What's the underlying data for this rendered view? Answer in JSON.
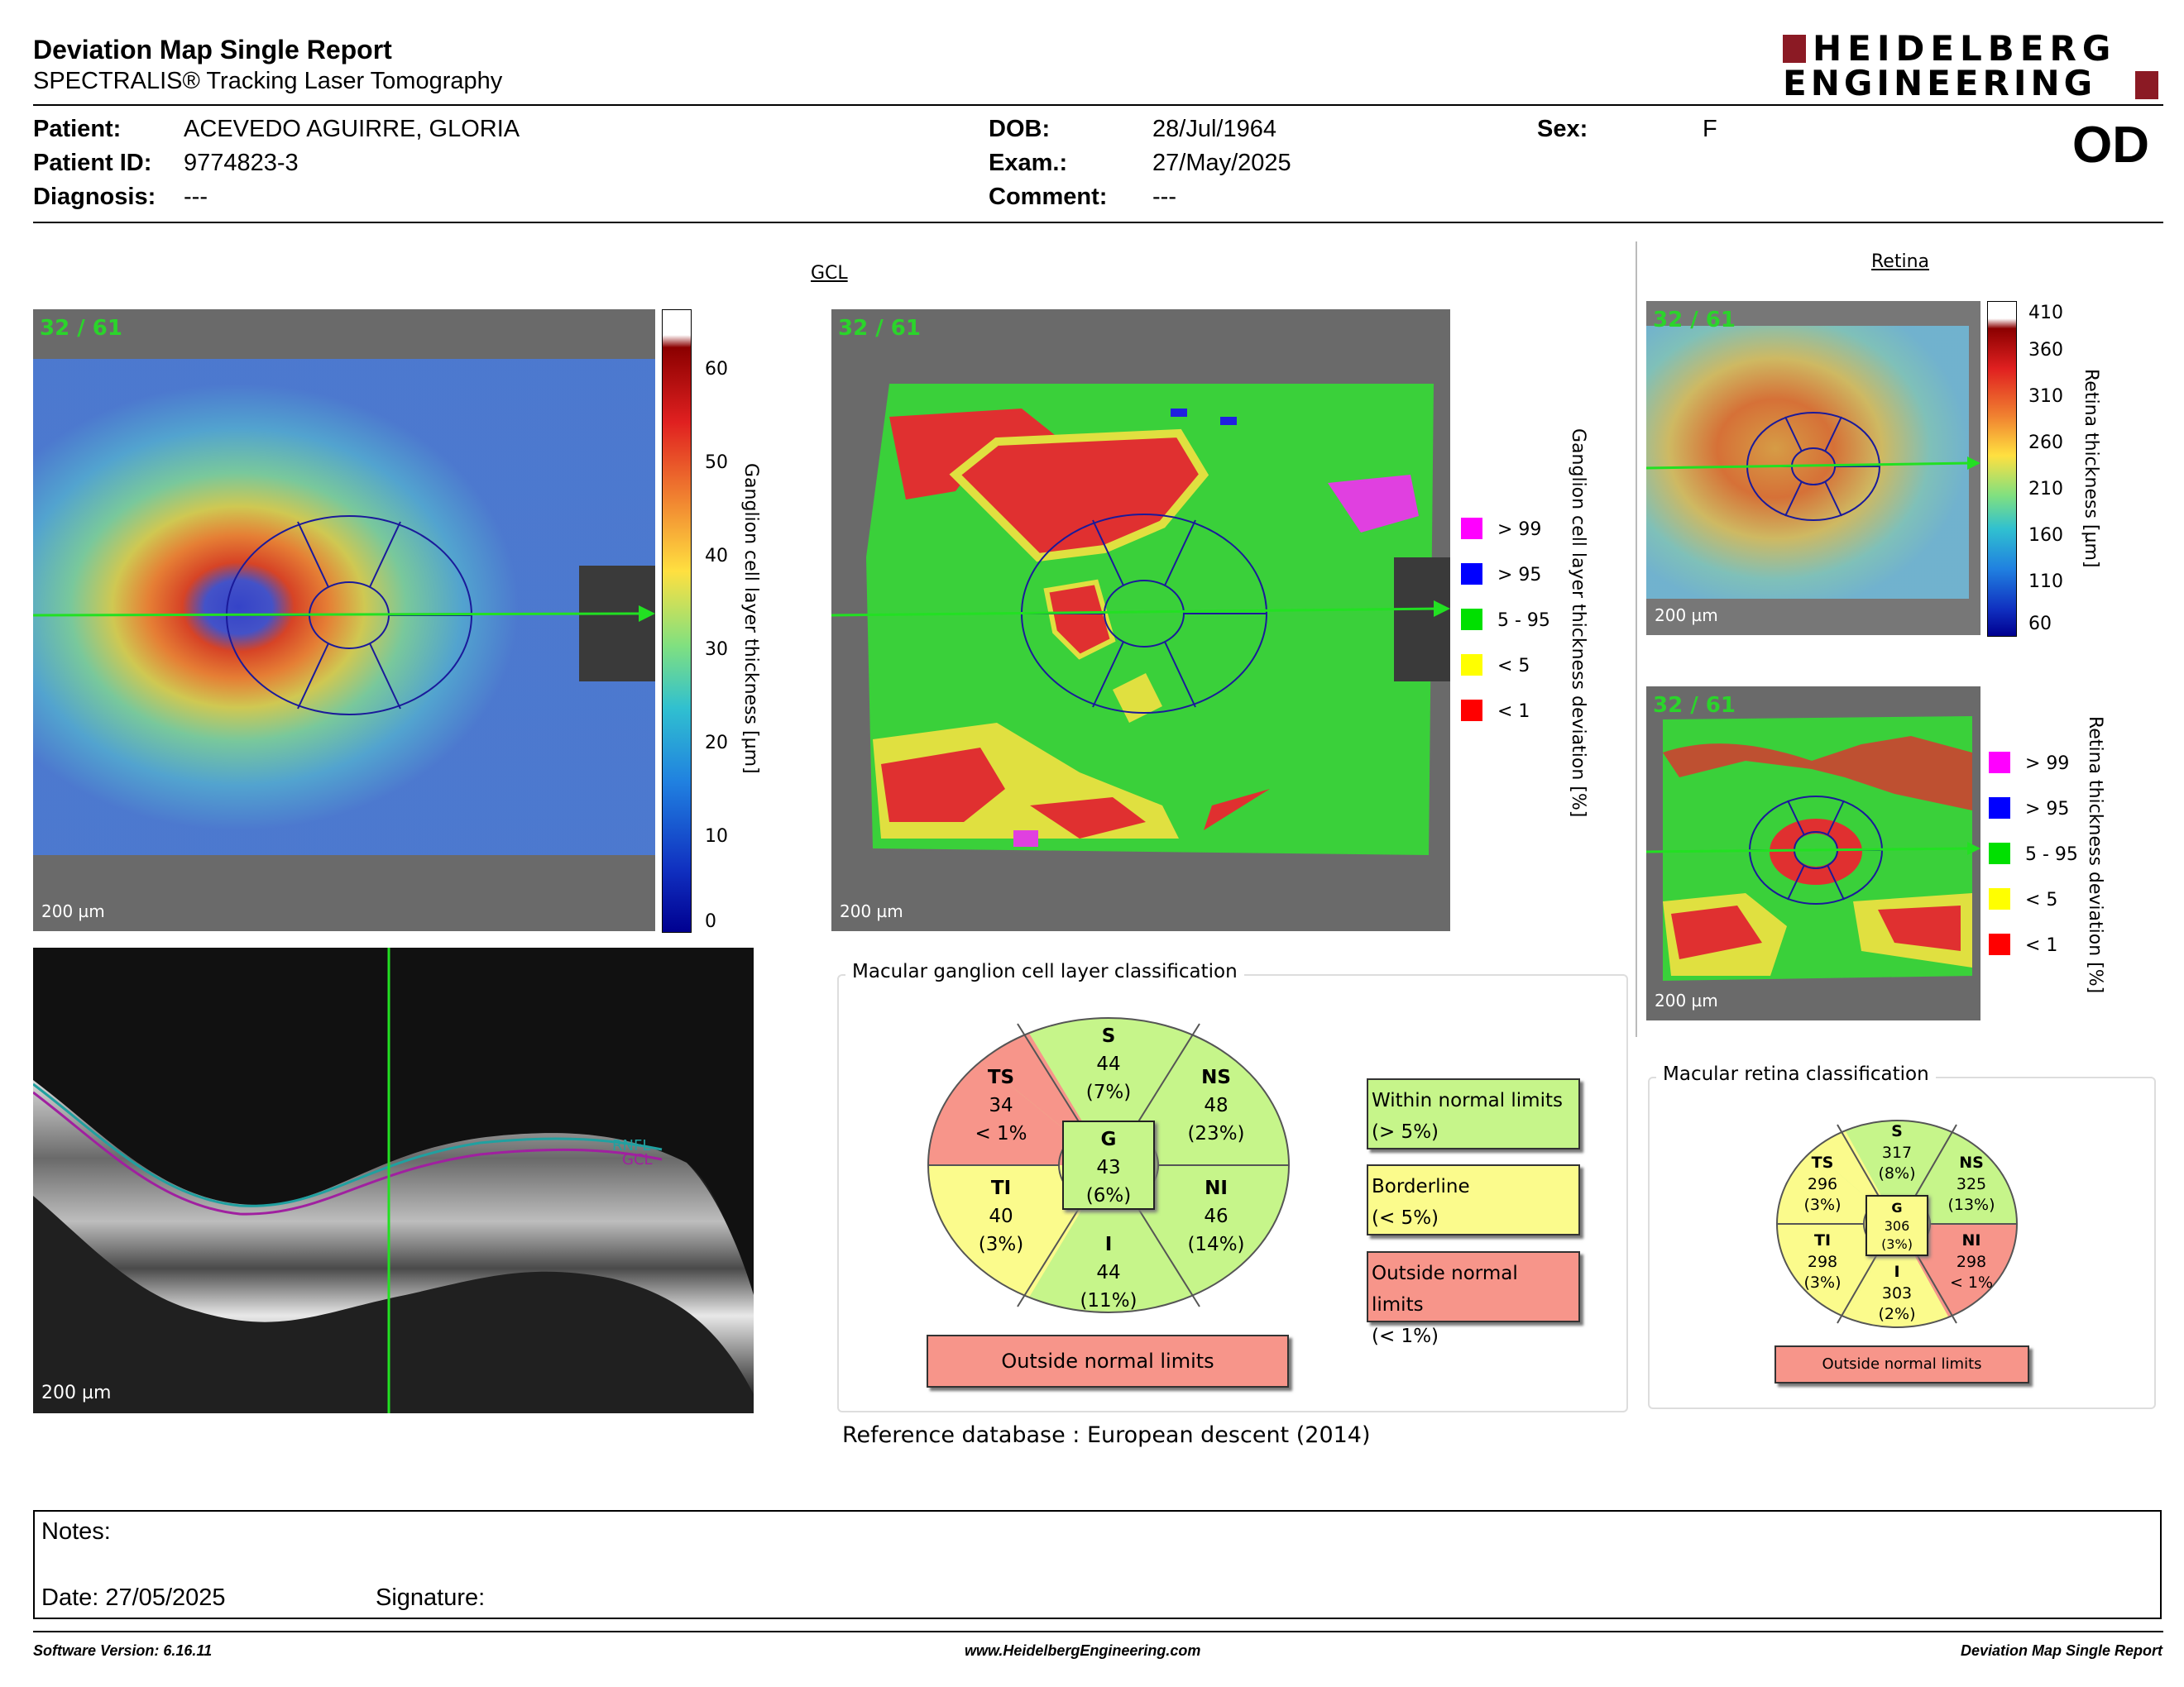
{
  "header": {
    "title": "Deviation Map Single Report",
    "subtitle": "SPECTRALIS® Tracking Laser Tomography",
    "logo_line1": "HEIDELBERG",
    "logo_line2": "ENGINEERING",
    "eye": "OD"
  },
  "patient": {
    "patient_label": "Patient:",
    "patient_value": "ACEVEDO AGUIRRE, GLORIA",
    "id_label": "Patient ID:",
    "id_value": "9774823-3",
    "diagnosis_label": "Diagnosis:",
    "diagnosis_value": "---",
    "dob_label": "DOB:",
    "dob_value": "28/Jul/1964",
    "exam_label": "Exam.:",
    "exam_value": "27/May/2025",
    "comment_label": "Comment:",
    "comment_value": "---",
    "sex_label": "Sex:",
    "sex_value": "F"
  },
  "gcl": {
    "section_label": "GCL",
    "counter": "32 / 61",
    "scale": "200 µm",
    "thickness_ticks": [
      "60",
      "50",
      "40",
      "30",
      "20",
      "10",
      "0"
    ],
    "thickness_axis": "Ganglion cell layer thickness [µm]",
    "deviation_axis": "Ganglion cell layer thickness deviation [%]",
    "legend": [
      {
        "label": "> 99",
        "color": "#ff00ff"
      },
      {
        "label": "> 95",
        "color": "#0000ff"
      },
      {
        "label": "5 - 95",
        "color": "#00e000"
      },
      {
        "label": "< 5",
        "color": "#ffff00"
      },
      {
        "label": "< 1",
        "color": "#ff0000"
      }
    ]
  },
  "oct": {
    "scale": "200 µm",
    "rnfl": "RNFL",
    "gcl": "GCL"
  },
  "retina": {
    "section_label": "Retina",
    "counter": "32 / 61",
    "scale": "200 µm",
    "thickness_ticks": [
      "410",
      "360",
      "310",
      "260",
      "210",
      "160",
      "110",
      "60"
    ],
    "thickness_axis": "Retina thickness [µm]",
    "deviation_axis": "Retina thickness deviation [%]",
    "legend": [
      "> 99",
      "> 95",
      "5 - 95",
      "< 5",
      "< 1"
    ]
  },
  "gcl_class": {
    "title": "Macular ganglion cell layer classification",
    "sectors": {
      "S": [
        "S",
        "44",
        "(7%)"
      ],
      "TS": [
        "TS",
        "34",
        "< 1%"
      ],
      "NS": [
        "NS",
        "48",
        "(23%)"
      ],
      "TI": [
        "TI",
        "40",
        "(3%)"
      ],
      "NI": [
        "NI",
        "46",
        "(14%)"
      ],
      "I": [
        "I",
        "44",
        "(11%)"
      ],
      "G": [
        "G",
        "43",
        "(6%)"
      ]
    },
    "result": "Outside normal limits",
    "key_within_1": "Within normal limits",
    "key_within_2": "(> 5%)",
    "key_border_1": "Borderline",
    "key_border_2": "(< 5%)",
    "key_outside_1": "Outside normal limits",
    "key_outside_2": "(< 1%)"
  },
  "retina_class": {
    "title": "Macular retina classification",
    "sectors": {
      "S": [
        "S",
        "317",
        "(8%)"
      ],
      "TS": [
        "TS",
        "296",
        "(3%)"
      ],
      "NS": [
        "NS",
        "325",
        "(13%)"
      ],
      "TI": [
        "TI",
        "298",
        "(3%)"
      ],
      "NI": [
        "NI",
        "298",
        "< 1%"
      ],
      "I": [
        "I",
        "303",
        "(2%)"
      ],
      "G": [
        "G",
        "306",
        "(3%)"
      ]
    },
    "result": "Outside normal limits"
  },
  "reference": "Reference database :  European descent (2014)",
  "notes": {
    "label": "Notes:",
    "date": "Date: 27/05/2025",
    "signature": "Signature:"
  },
  "footer": {
    "software": "Software Version: 6.16.11",
    "website": "www.HeidelbergEngineering.com",
    "report": "Deviation Map Single Report"
  },
  "colors": {
    "within": "#c6f58a",
    "borderline": "#fbfb8c",
    "outside": "#f7958a",
    "brand": "#8b1a24"
  }
}
